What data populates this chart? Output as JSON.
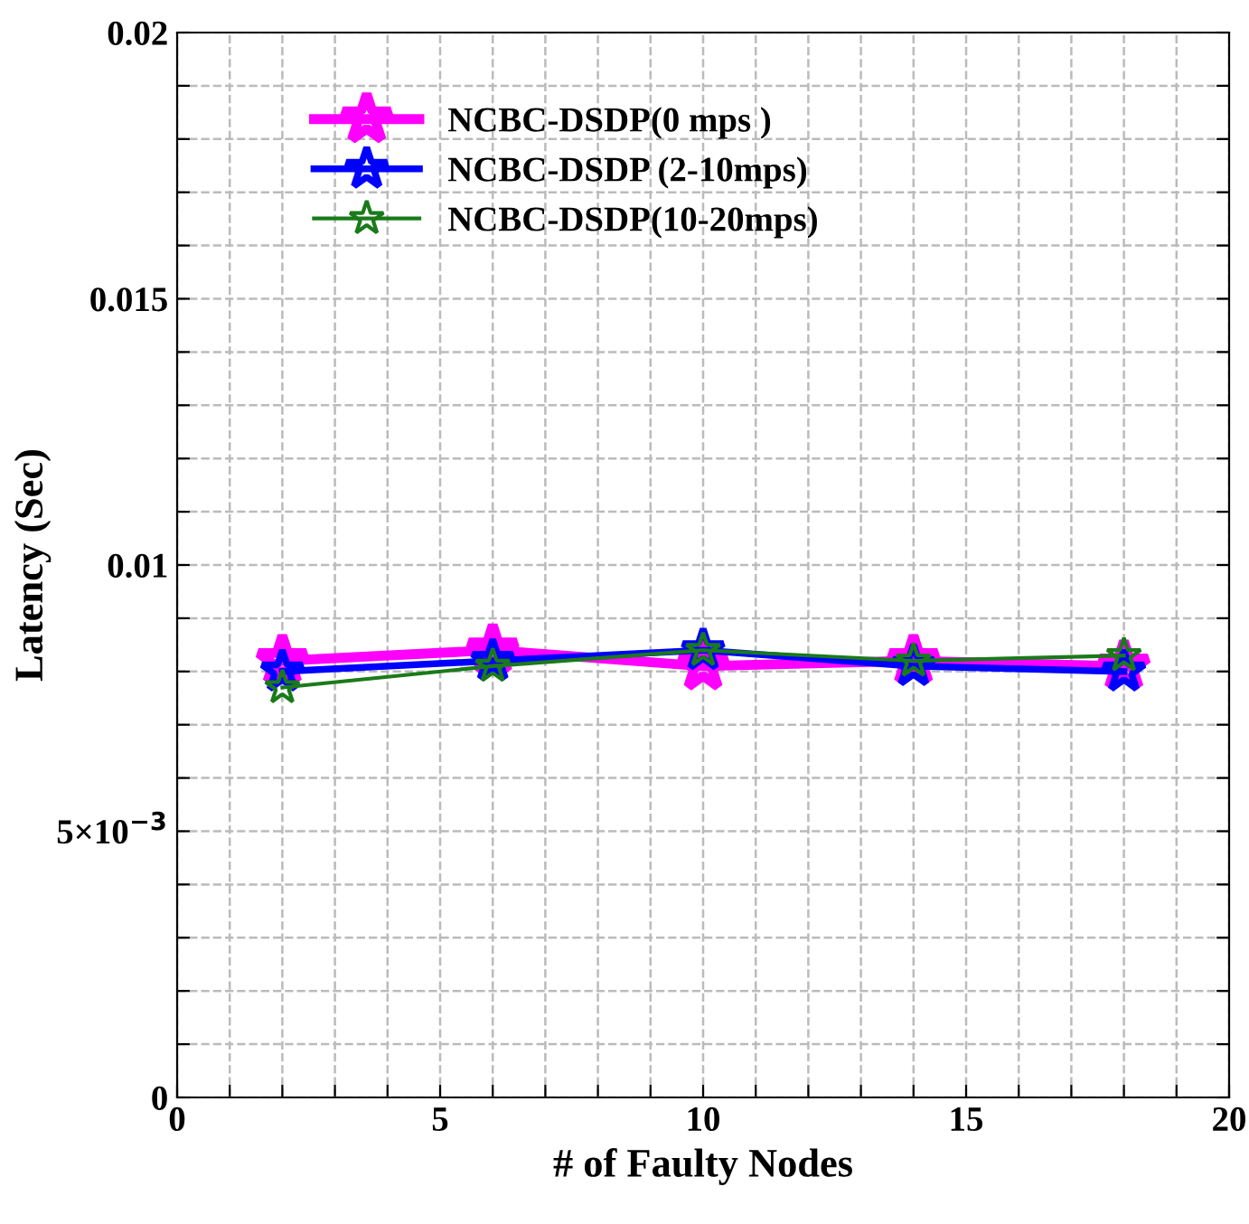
{
  "chart_data": {
    "type": "line",
    "xlabel": "# of Faulty Nodes",
    "ylabel": "Latency (Sec)",
    "x": [
      2,
      6,
      10,
      14,
      18
    ],
    "series": [
      {
        "name": "NCBC-DSDP(0 mps )",
        "color": "#ff00ff",
        "values": [
          0.0082,
          0.0084,
          0.0081,
          0.0082,
          0.0081
        ]
      },
      {
        "name": "NCBC-DSDP (2-10mps)",
        "color": "#0000ff",
        "values": [
          0.008,
          0.0082,
          0.0084,
          0.0081,
          0.008
        ]
      },
      {
        "name": "NCBC-DSDP(10-20mps)",
        "color": "#1a7a1a",
        "values": [
          0.0077,
          0.0081,
          0.0084,
          0.0082,
          0.0083
        ]
      }
    ],
    "xlim": [
      0,
      20
    ],
    "ylim": [
      0,
      0.02
    ],
    "xticks": [
      0,
      {
        "value": 1,
        "label": null
      },
      {
        "value": 2,
        "label": null
      },
      {
        "value": 3,
        "label": null
      },
      {
        "value": 4,
        "label": null
      },
      5,
      {
        "value": 6,
        "label": null
      },
      {
        "value": 7,
        "label": null
      },
      {
        "value": 8,
        "label": null
      },
      {
        "value": 9,
        "label": null
      },
      10,
      {
        "value": 11,
        "label": null
      },
      {
        "value": 12,
        "label": null
      },
      {
        "value": 13,
        "label": null
      },
      {
        "value": 14,
        "label": null
      },
      15,
      {
        "value": 16,
        "label": null
      },
      {
        "value": 17,
        "label": null
      },
      {
        "value": 18,
        "label": null
      },
      {
        "value": 19,
        "label": null
      },
      20
    ],
    "yticks": [
      0,
      {
        "value": 0.001,
        "label": null
      },
      {
        "value": 0.002,
        "label": null
      },
      {
        "value": 0.003,
        "label": null
      },
      {
        "value": 0.004,
        "label": null
      },
      {
        "value": 0.005,
        "label": "5×10$^{−3}$"
      },
      {
        "value": 0.006,
        "label": null
      },
      {
        "value": 0.007,
        "label": null
      },
      {
        "value": 0.008,
        "label": null
      },
      {
        "value": 0.009,
        "label": null
      },
      0.01,
      {
        "value": 0.011,
        "label": null
      },
      {
        "value": 0.012,
        "label": null
      },
      {
        "value": 0.013,
        "label": null
      },
      {
        "value": 0.014,
        "label": null
      },
      0.015,
      {
        "value": 0.016,
        "label": null
      },
      {
        "value": 0.017,
        "label": null
      },
      {
        "value": 0.018,
        "label": null
      },
      {
        "value": 0.019,
        "label": null
      },
      0.02
    ],
    "grid": true,
    "legend": "top left",
    "marker": "star",
    "line_style": "solid"
  }
}
